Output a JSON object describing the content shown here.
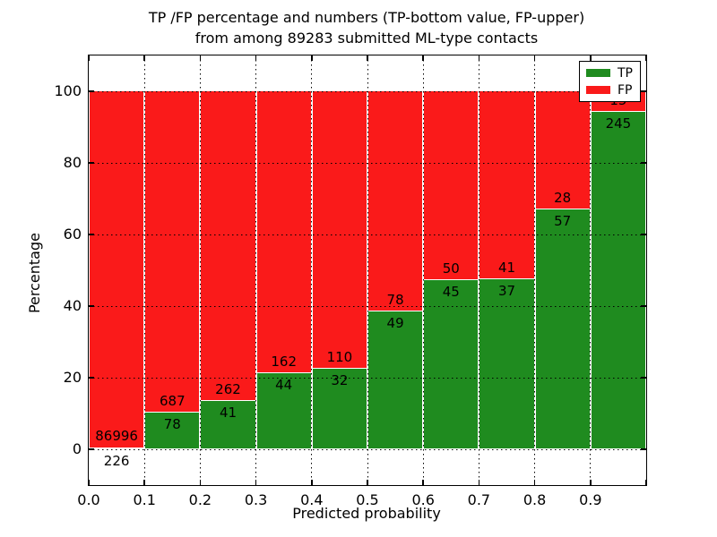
{
  "chart_data": {
    "type": "stacked_bar",
    "title_line1": "TP /FP percentage and numbers (TP-bottom value, FP-upper)",
    "title_line2": "from among 89283 submitted ML-type contacts",
    "xlabel": "Predicted probability",
    "ylabel": "Percentage",
    "total_submitted": 89283,
    "unit": "percent of contacts per predicted-probability bin",
    "categories": [
      "0.0-0.1",
      "0.1-0.2",
      "0.2-0.3",
      "0.3-0.4",
      "0.4-0.5",
      "0.5-0.6",
      "0.6-0.7",
      "0.7-0.8",
      "0.8-0.9",
      "0.9-1.0"
    ],
    "series": [
      {
        "name": "TP",
        "color": "#1f8b1f",
        "values": [
          226,
          78,
          41,
          44,
          32,
          49,
          45,
          37,
          57,
          245
        ]
      },
      {
        "name": "FP",
        "color": "#fa1a1a",
        "values": [
          86996,
          687,
          262,
          162,
          110,
          78,
          50,
          41,
          28,
          15
        ]
      }
    ],
    "tp_percent": [
      0.26,
      10.2,
      13.53,
      21.36,
      22.54,
      38.58,
      47.37,
      47.44,
      67.06,
      94.23
    ],
    "xticks": [
      "0.0",
      "0.1",
      "0.2",
      "0.3",
      "0.4",
      "0.5",
      "0.6",
      "0.7",
      "0.8",
      "0.9"
    ],
    "yticks": [
      "0",
      "20",
      "40",
      "60",
      "80",
      "100"
    ],
    "ytick_values": [
      0,
      20,
      40,
      60,
      80,
      100
    ],
    "xlim": [
      0.0,
      1.0
    ],
    "ylim": [
      -10,
      110
    ],
    "grid": "dotted",
    "legend": {
      "position": "upper-right",
      "entries": [
        {
          "label": "TP",
          "color": "#1f8b1f"
        },
        {
          "label": "FP",
          "color": "#fa1a1a"
        }
      ]
    }
  }
}
